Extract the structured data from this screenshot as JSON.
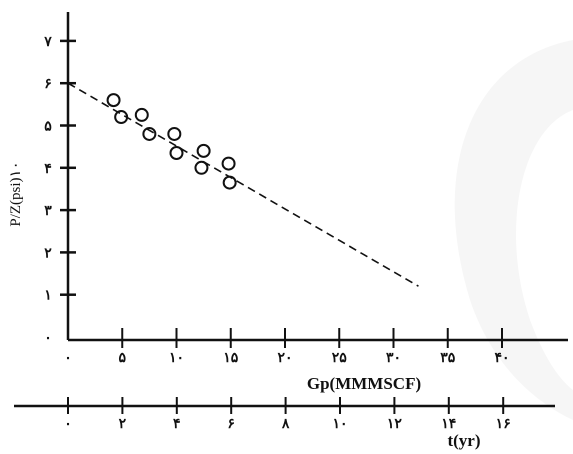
{
  "chart_data": {
    "type": "scatter",
    "title": "",
    "xlabel": "Gp(MMMSCF)",
    "ylabel": "P/Z(psi)۱۰",
    "xlim": [
      0,
      45
    ],
    "ylim": [
      0,
      7
    ],
    "x_tick_labels": [
      "۰",
      "۵",
      "۱۰",
      "۱۵",
      "۲۰",
      "۲۵",
      "۳۰",
      "۳۵",
      "۴۰"
    ],
    "y_tick_labels": [
      "۰",
      "۱",
      "۲",
      "۳",
      "۴",
      "۵",
      "۶",
      "۷"
    ],
    "points": [
      {
        "x": 4.2,
        "y": 5.6
      },
      {
        "x": 4.9,
        "y": 5.2
      },
      {
        "x": 6.8,
        "y": 5.25
      },
      {
        "x": 7.5,
        "y": 4.8
      },
      {
        "x": 9.8,
        "y": 4.8
      },
      {
        "x": 10.0,
        "y": 4.35
      },
      {
        "x": 12.5,
        "y": 4.4
      },
      {
        "x": 12.3,
        "y": 4.0
      },
      {
        "x": 14.8,
        "y": 4.1
      },
      {
        "x": 14.9,
        "y": 3.65
      }
    ],
    "trend_line": {
      "x": [
        0,
        32.3
      ],
      "y": [
        6.0,
        1.2
      ],
      "style": "dashed"
    },
    "secondary_axis": {
      "label": "t(yr)",
      "tick_labels": [
        "۰",
        "۲",
        "۴",
        "۶",
        "۸",
        "۱۰",
        "۱۲",
        "۱۴",
        "۱۶"
      ]
    },
    "grid": false,
    "legend": "none"
  }
}
